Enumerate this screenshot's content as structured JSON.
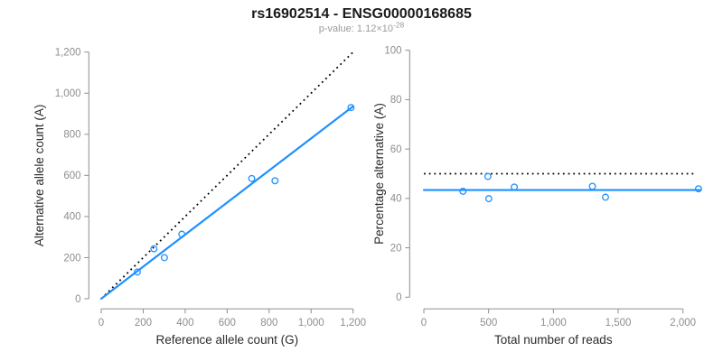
{
  "figure": {
    "title": "rs16902514 - ENSG00000168685",
    "p_value": {
      "prefix": "p-value: 1.12×10",
      "exponent": "-28"
    }
  },
  "colors": {
    "series_blue": "#1E90FF",
    "reference_black": "#000000",
    "axis_gray": "#8E8E8E",
    "text_dark": "#2B2B2B",
    "subtitle_gray": "#9B9B9B"
  },
  "chart_data": [
    {
      "id": "allele-counts-scatter",
      "type": "scatter",
      "xlabel": "Reference allele count (G)",
      "ylabel": "Alternative allele count (A)",
      "xlim": [
        0,
        1200
      ],
      "ylim": [
        0,
        1200
      ],
      "xticks": [
        0,
        200,
        400,
        600,
        800,
        1000,
        1200
      ],
      "xtick_labels": [
        "0",
        "200",
        "400",
        "600",
        "800",
        "1,000",
        "1,200"
      ],
      "yticks": [
        0,
        200,
        400,
        600,
        800,
        1000,
        1200
      ],
      "ytick_labels": [
        "0",
        "200",
        "400",
        "600",
        "800",
        "1,000",
        "1,200"
      ],
      "grid": false,
      "legend": "none",
      "points": [
        [
          172,
          130
        ],
        [
          251,
          243
        ],
        [
          301,
          200
        ],
        [
          384,
          314
        ],
        [
          717,
          585
        ],
        [
          828,
          574
        ],
        [
          1190,
          930
        ]
      ],
      "lines": [
        {
          "name": "identity-line",
          "style": "dotted",
          "color_key": "reference_black",
          "from": [
            0,
            0
          ],
          "to": [
            1207,
            1207
          ]
        },
        {
          "name": "fit-line",
          "style": "solid",
          "color_key": "series_blue",
          "from": [
            0,
            0
          ],
          "to": [
            1200,
            936
          ]
        }
      ]
    },
    {
      "id": "percentage-vs-coverage-scatter",
      "type": "scatter",
      "xlabel": "Total number of reads",
      "ylabel": "Percentage alternative (A)",
      "xlim": [
        0,
        2000
      ],
      "ylim": [
        0,
        100
      ],
      "xticks": [
        0,
        500,
        1000,
        1500,
        2000
      ],
      "xtick_labels": [
        "0",
        "500",
        "1,000",
        "1,500",
        "2,000"
      ],
      "yticks": [
        0,
        20,
        40,
        60,
        80,
        100
      ],
      "ytick_labels": [
        "0",
        "20",
        "40",
        "60",
        "80",
        "100"
      ],
      "grid": false,
      "legend": "none",
      "points": [
        [
          302,
          42.9
        ],
        [
          494,
          48.9
        ],
        [
          501,
          39.9
        ],
        [
          698,
          44.6
        ],
        [
          1301,
          44.9
        ],
        [
          1402,
          40.5
        ],
        [
          2120,
          43.9
        ]
      ],
      "lines": [
        {
          "name": "expected-50-percent-line",
          "style": "dotted",
          "color_key": "reference_black",
          "from": [
            0,
            50
          ],
          "to": [
            2100,
            50
          ]
        },
        {
          "name": "mean-percentage-line",
          "style": "solid",
          "color_key": "series_blue",
          "from": [
            0,
            43.4
          ],
          "to": [
            2135,
            43.4
          ]
        }
      ]
    }
  ]
}
